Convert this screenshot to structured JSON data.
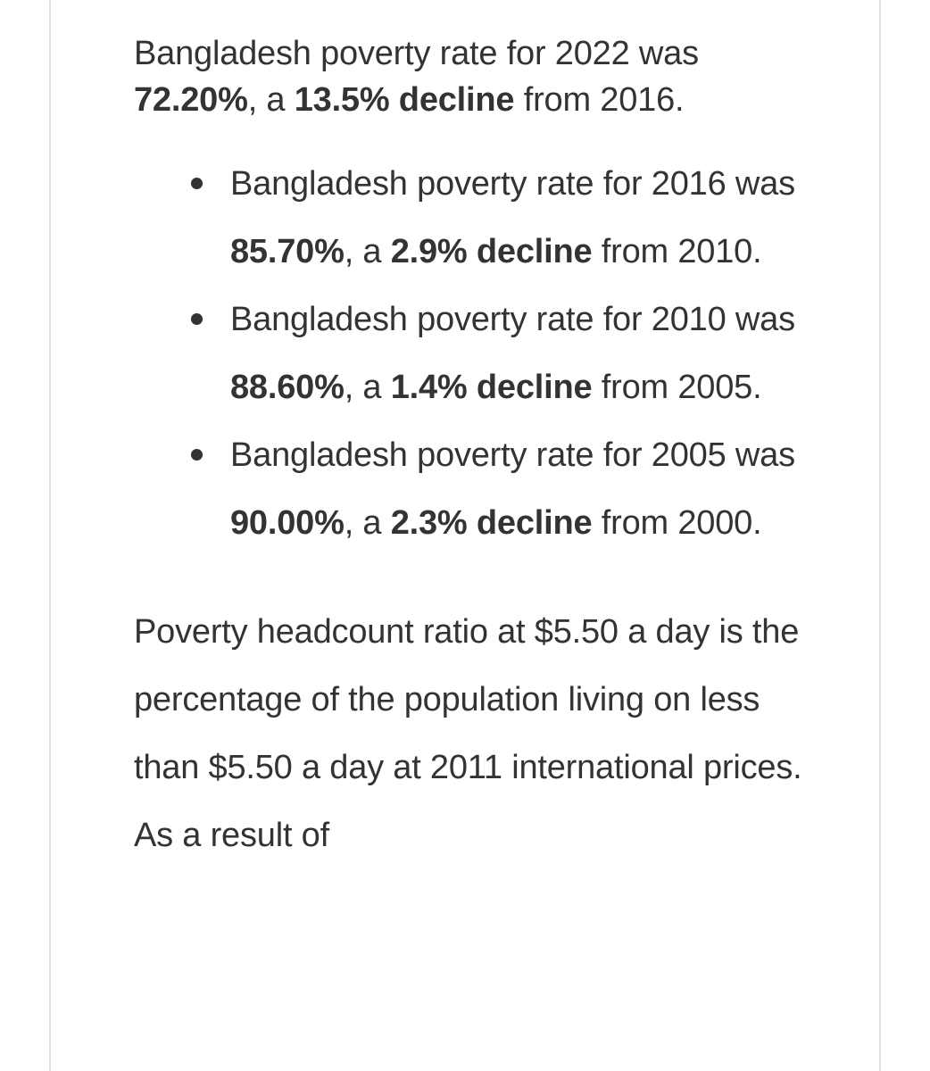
{
  "intro": {
    "t1": "Bangladesh poverty rate for 2022 was ",
    "b1": "72.20%",
    "t2": ", a ",
    "b2": "13.5% decline",
    "t3": " from 2016."
  },
  "bullets": [
    {
      "t1": "Bangladesh poverty rate for 2016 was ",
      "b1": "85.70%",
      "t2": ", a ",
      "b2": "2.9% decline",
      "t3": " from 2010."
    },
    {
      "t1": "Bangladesh poverty rate for 2010 was ",
      "b1": "88.60%",
      "t2": ", a ",
      "b2": "1.4% decline",
      "t3": " from 2005."
    },
    {
      "t1": "Bangladesh poverty rate for 2005 was ",
      "b1": "90.00%",
      "t2": ", a ",
      "b2": "2.3% decline",
      "t3": " from 2000."
    }
  ],
  "paragraph": {
    "text": "Poverty headcount ratio at $5.50 a day is the percentage of the population living on less than $5.50 a day at 2011 international prices. As a result of"
  }
}
